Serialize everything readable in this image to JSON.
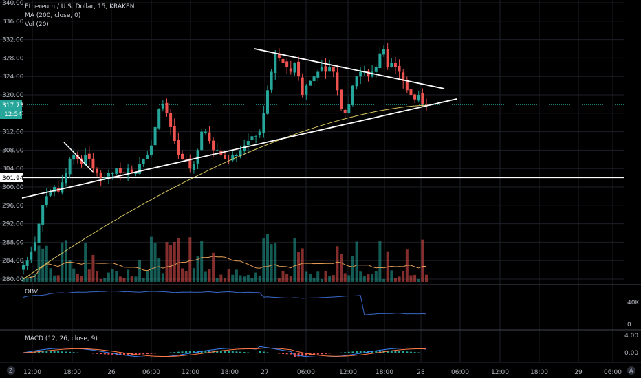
{
  "header": {
    "title": "Ethereum / U.S. Dollar, 15, KRAKEN",
    "ma_label": "MA (200, close, 0)",
    "vol_label": "Vol (20)"
  },
  "colors": {
    "up": "#26a69a",
    "down": "#ef5350",
    "ma": "#d8c761",
    "vol_ma": "#e39e54",
    "obv": "#3a68c9",
    "macd": "#3b82f6",
    "signal": "#ff7a45",
    "price_tag": "#26a69a",
    "trendline": "#ffffff"
  },
  "price_axis": {
    "ticks": [
      "340.00",
      "336.00",
      "332.00",
      "328.00",
      "324.00",
      "320.00",
      "316.00",
      "312.00",
      "308.00",
      "304.00",
      "300.00",
      "296.00",
      "292.00",
      "288.00",
      "284.00",
      "280.00"
    ],
    "current_price": "317.73",
    "countdown": "12:54",
    "level_label": "301.94"
  },
  "time_axis": {
    "ticks": [
      "12:00",
      "18:00",
      "26",
      "06:00",
      "12:00",
      "18:00",
      "27",
      "06:00",
      "12:00",
      "18:00",
      "28",
      "06:00",
      "12:00",
      "18:00",
      "29",
      "06:00"
    ]
  },
  "obv_pane": {
    "label": "OBV",
    "ticks": [
      "40K",
      "0"
    ]
  },
  "macd_pane": {
    "label": "MACD (12, 26, close, 9)",
    "ticks": [
      "4.00",
      "0.00"
    ]
  },
  "corner": {
    "left_button": "Z",
    "right_button": "A"
  },
  "chart_data": {
    "type": "candlestick",
    "symbol": "Ethereum / U.S. Dollar",
    "interval": "15",
    "exchange": "KRAKEN",
    "ylim": [
      280,
      340
    ],
    "close_approx": [
      283,
      284,
      286,
      288,
      292,
      296,
      298,
      299,
      300,
      299,
      301,
      303,
      306,
      307,
      306,
      305,
      307,
      306,
      304,
      303,
      302,
      302,
      303,
      303,
      304,
      303,
      303,
      304,
      303,
      303,
      305,
      306,
      307,
      309,
      313,
      317,
      318,
      316,
      313,
      310,
      307,
      306,
      306,
      304,
      305,
      308,
      312,
      312,
      310,
      308,
      308,
      307,
      306,
      306,
      307,
      307,
      308,
      309,
      310,
      311,
      311,
      312,
      316,
      321,
      325,
      329,
      328,
      327,
      326,
      325,
      327,
      324,
      320,
      322,
      323,
      324,
      325,
      326,
      325,
      326,
      325,
      321,
      317,
      316,
      318,
      322,
      324,
      325,
      325,
      324,
      325,
      326,
      329,
      330,
      326,
      327,
      326,
      325,
      323,
      321,
      320,
      319,
      320,
      318,
      317.73
    ],
    "support_level": 301.94,
    "current_price": 317.73,
    "ma200": {
      "start": 280,
      "end": 317.73
    },
    "trendlines": [
      {
        "name": "ascending support",
        "from": 297.5,
        "to": 319.5
      },
      {
        "name": "descending resistance",
        "from": 329.5,
        "to": 321.2
      },
      {
        "name": "short down line",
        "from": 308.3,
        "to": 303.3
      }
    ]
  }
}
